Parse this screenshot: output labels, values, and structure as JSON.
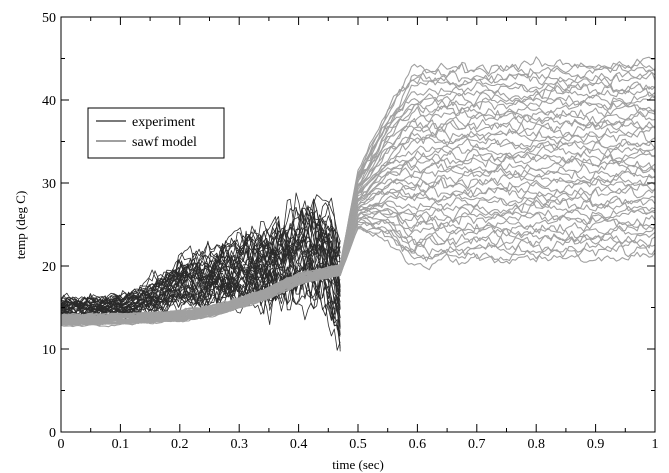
{
  "chart_data": {
    "type": "line",
    "title": "",
    "xlabel": "time (sec)",
    "ylabel": "temp (deg C)",
    "xlim": [
      0,
      1
    ],
    "ylim": [
      0,
      50
    ],
    "grid": false,
    "legend_position": "upper-left",
    "x_ticks": [
      "0",
      "0.1",
      "0.2",
      "0.3",
      "0.4",
      "0.5",
      "0.6",
      "0.7",
      "0.8",
      "0.9",
      "1"
    ],
    "y_ticks": [
      "0",
      "10",
      "20",
      "30",
      "40",
      "50"
    ],
    "series": [
      {
        "name": "experiment",
        "color": "#2a2a2a",
        "x": [
          0.0,
          0.05,
          0.1,
          0.15,
          0.2,
          0.25,
          0.3,
          0.35,
          0.4,
          0.45,
          0.47
        ],
        "y": [
          15.0,
          15.0,
          15.2,
          16.0,
          18.0,
          18.5,
          19.5,
          20.0,
          21.0,
          22.0,
          17.0
        ]
      },
      {
        "name": "sawf model",
        "color": "#a0a0a0",
        "x": [
          0.0,
          0.1,
          0.2,
          0.25,
          0.3,
          0.35,
          0.4,
          0.47,
          0.5,
          0.55,
          0.6,
          0.7,
          0.8,
          0.9,
          1.0
        ],
        "y": [
          13.5,
          13.6,
          14.0,
          14.5,
          15.5,
          16.8,
          18.5,
          19.5,
          28.0,
          31.0,
          32.0,
          32.5,
          32.5,
          32.8,
          33.0
        ]
      }
    ]
  }
}
